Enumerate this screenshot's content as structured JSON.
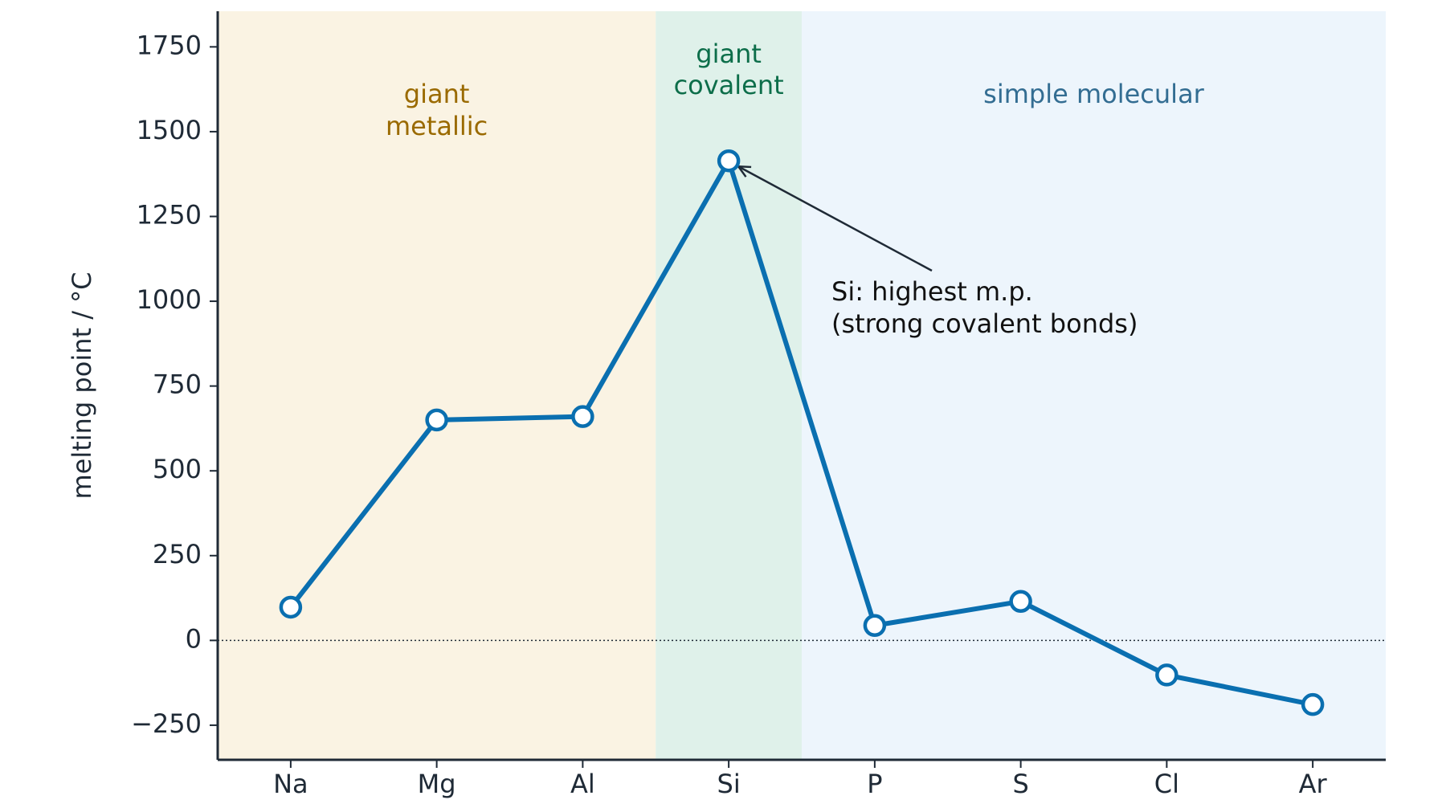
{
  "chart_data": {
    "type": "line",
    "ylabel": "melting point / °C",
    "categories": [
      "Na",
      "Mg",
      "Al",
      "Si",
      "P",
      "S",
      "Cl",
      "Ar"
    ],
    "series": [
      {
        "name": "melting point",
        "color": "#0a6fb0",
        "values": [
          98,
          650,
          660,
          1414,
          44,
          115,
          -102,
          -189
        ]
      }
    ],
    "ylim": [
      -352,
      1855
    ],
    "yticks": [
      {
        "value": -250,
        "label": "−250"
      },
      0,
      250,
      500,
      750,
      1000,
      1250,
      1500,
      1750
    ],
    "regions": [
      {
        "label": [
          "giant",
          "metallic"
        ],
        "from": "Na",
        "to": "Al",
        "color": "#faf3e3",
        "text_color": "#9a6a00"
      },
      {
        "label": [
          "giant",
          "covalent"
        ],
        "from": "Si",
        "to": "Si",
        "color": "#dff1ea",
        "text_color": "#0d6e4a"
      },
      {
        "label": [
          "simple molecular"
        ],
        "from": "P",
        "to": "Ar",
        "color": "#edf5fc",
        "text_color": "#336d92"
      }
    ],
    "annotation": {
      "text": [
        "Si: highest m.p.",
        "(strong covalent bonds)"
      ],
      "target": "Si"
    }
  }
}
